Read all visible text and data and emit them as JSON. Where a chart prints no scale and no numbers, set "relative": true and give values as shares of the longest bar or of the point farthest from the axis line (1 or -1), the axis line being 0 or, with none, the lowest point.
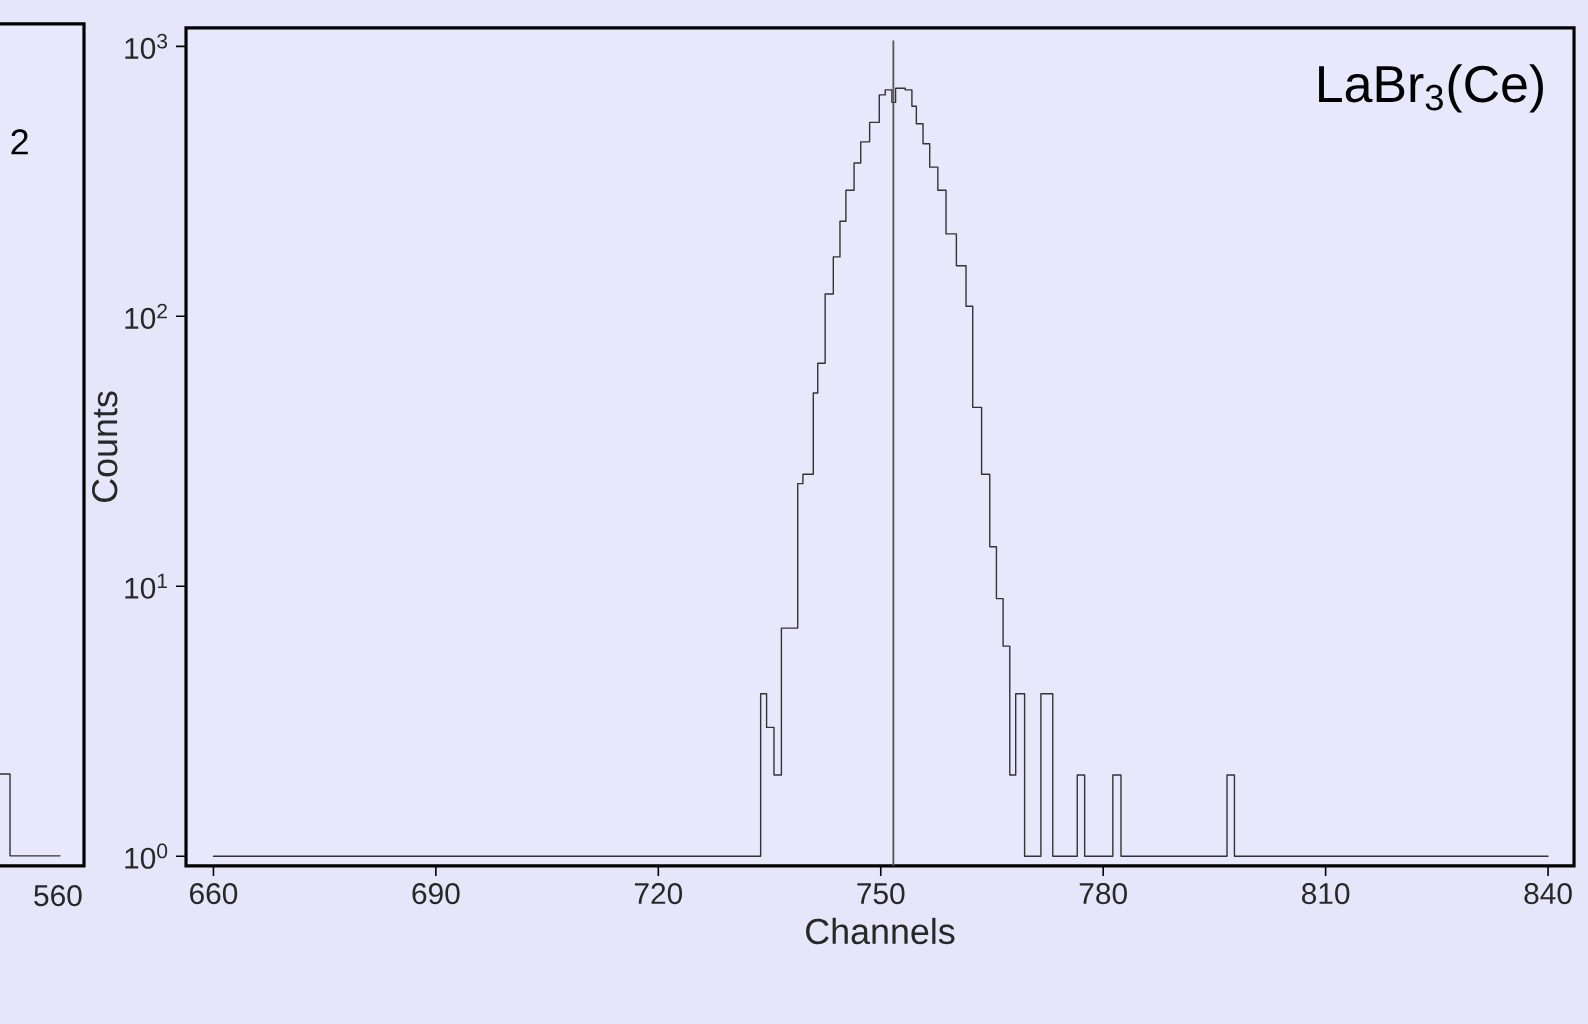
{
  "chart_data": [
    {
      "type": "step",
      "categories": [
        null,
        null,
        null
      ],
      "values": [
        1,
        0.11,
        0.11
      ],
      "color": "#333333",
      "relative": true,
      "annotations": [
        "2",
        "560"
      ]
    },
    {
      "type": "histogram",
      "xlabel": "Channels",
      "ylabel": "Counts",
      "annotations": [
        "LaBr$_{3}$(Ce)"
      ],
      "color": "#333333",
      "bins": [
        660,
        733.8,
        734.6,
        735.6,
        736.6,
        738.8,
        739.5,
        740.9,
        741.5,
        742.5,
        743.6,
        744.5,
        745.3,
        746.4,
        747.3,
        748.5,
        749.8,
        750.6,
        751.5,
        752.0,
        753.3,
        754.2,
        754.8,
        755.7,
        756.6,
        757.7,
        758.8,
        760.2,
        761.5,
        762.4,
        763.6,
        764.7,
        765.6,
        766.5,
        767.4,
        768.2,
        769.4,
        771.6,
        773.2,
        776.5,
        777.5,
        781.3,
        782.4,
        796.7,
        797.7,
        840
      ],
      "values": [
        1,
        4,
        3,
        2,
        7,
        24,
        26,
        52,
        67,
        121,
        166,
        225,
        293,
        370,
        443,
        523,
        661,
        690,
        620,
        700,
        690,
        600,
        517,
        436,
        357,
        293,
        202,
        154,
        109,
        46,
        26,
        14,
        9,
        6,
        2,
        4,
        1,
        4,
        1,
        2,
        1,
        2,
        1,
        2,
        1
      ],
      "xlim": [
        656.3,
        843.5
      ],
      "ylim": [
        0.92,
        1170
      ],
      "xticks": [
        660,
        690,
        720,
        750,
        780,
        810,
        840
      ],
      "yticks": [
        {
          "value": 1,
          "label": "10$^{0}$"
        },
        {
          "value": 10,
          "label": "10$^{1}$"
        },
        {
          "value": 100,
          "label": "10$^{2}$"
        },
        {
          "value": 1000,
          "label": "10$^{3}$"
        }
      ],
      "log": true,
      "ref_lines": [
        {
          "axis": "x",
          "value": 751.7,
          "color": "#555555"
        }
      ]
    }
  ]
}
